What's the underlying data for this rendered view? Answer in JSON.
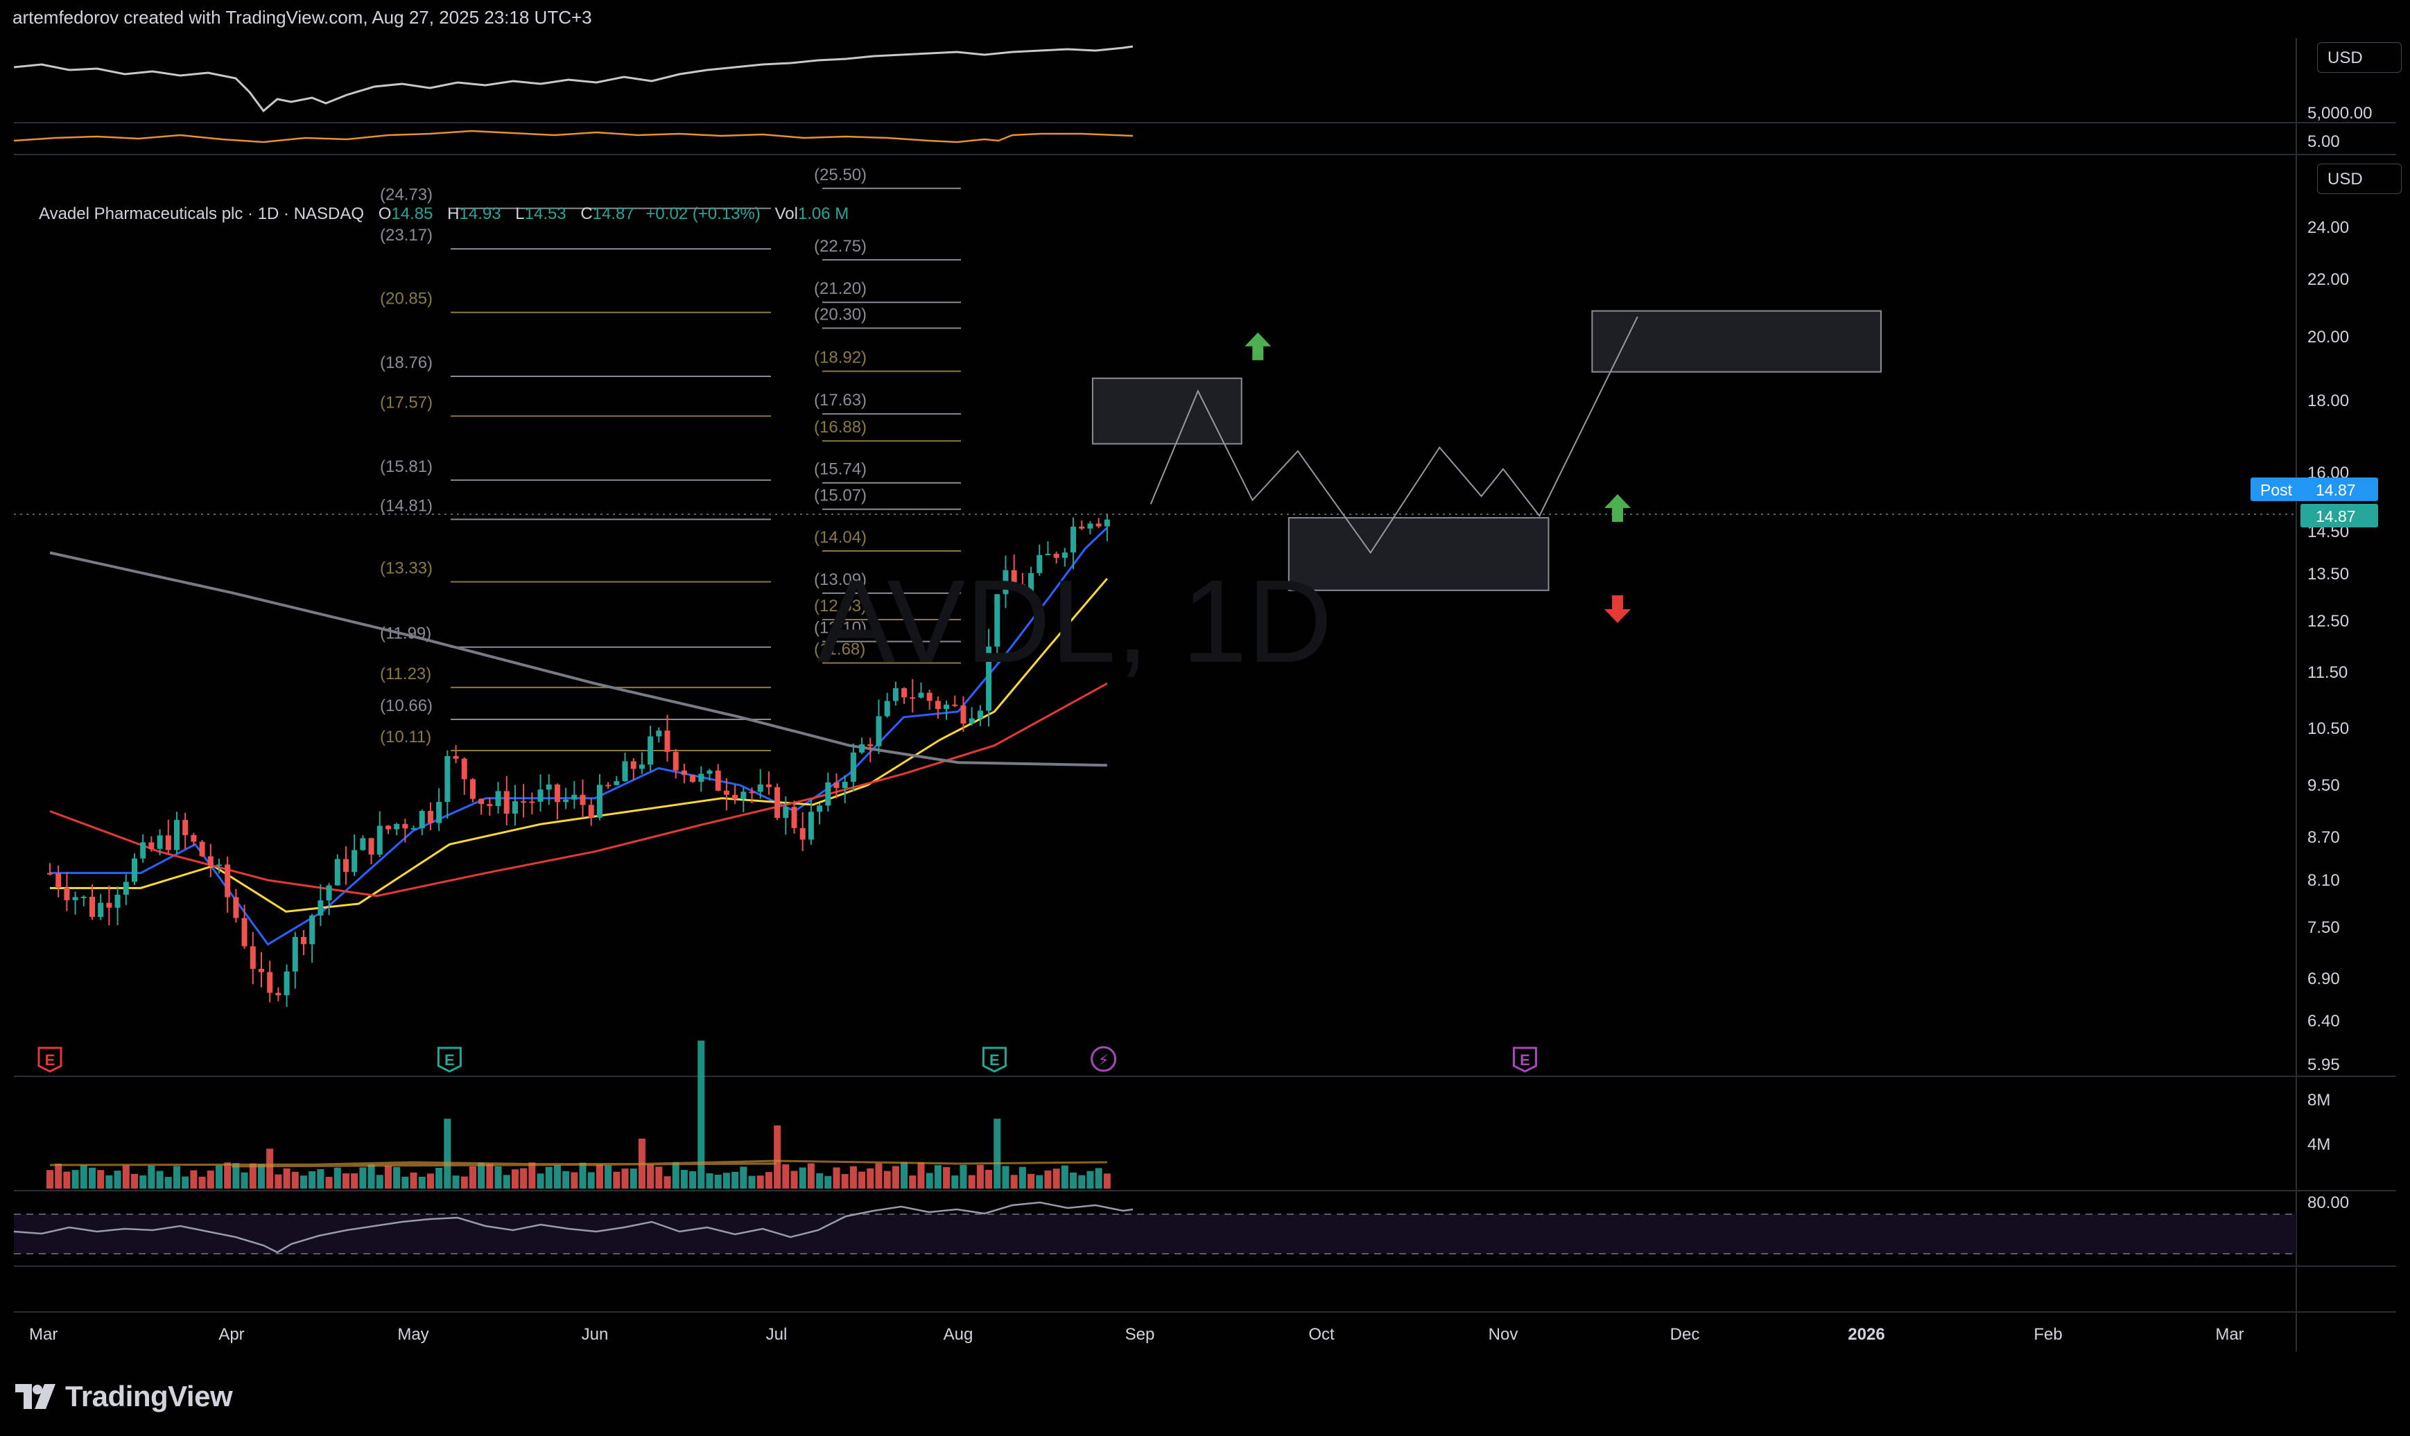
{
  "header": {
    "caption": "artemfedorov created with TradingView.com, Aug 27, 2025 23:18 UTC+3"
  },
  "legend": {
    "title": "Avadel Pharmaceuticals plc · 1D · NASDAQ",
    "o_label": "O",
    "o_value": "14.85",
    "h_label": "H",
    "h_value": "14.93",
    "l_label": "L",
    "l_value": "14.53",
    "c_label": "C",
    "c_value": "14.87",
    "change": "+0.02 (+0.13%)",
    "vol_label": "Vol",
    "vol_value": "1.06 M"
  },
  "watermark": "AVDL, 1D",
  "price_scale": {
    "currency": "USD",
    "top_pane_ticks": [
      "5,000.00",
      "5.00"
    ],
    "ticks": [
      {
        "label": "24.00",
        "v": 24.0
      },
      {
        "label": "22.00",
        "v": 22.0
      },
      {
        "label": "20.00",
        "v": 20.0
      },
      {
        "label": "18.00",
        "v": 18.0
      },
      {
        "label": "16.00",
        "v": 16.0
      },
      {
        "label": "14.50",
        "v": 14.5
      },
      {
        "label": "13.50",
        "v": 13.5
      },
      {
        "label": "12.50",
        "v": 12.5
      },
      {
        "label": "11.50",
        "v": 11.5
      },
      {
        "label": "10.50",
        "v": 10.5
      },
      {
        "label": "9.50",
        "v": 9.5
      },
      {
        "label": "8.70",
        "v": 8.7
      },
      {
        "label": "8.10",
        "v": 8.1
      },
      {
        "label": "7.50",
        "v": 7.5
      },
      {
        "label": "6.90",
        "v": 6.9
      },
      {
        "label": "6.40",
        "v": 6.4
      },
      {
        "label": "5.95",
        "v": 5.95
      }
    ],
    "post_label": "Post",
    "post_price": "14.87",
    "last_price": "14.87",
    "volume_ticks": [
      "8M",
      "4M"
    ],
    "rsi_tick": "80.00"
  },
  "time_axis": {
    "labels": [
      "Mar",
      "Apr",
      "May",
      "Jun",
      "Jul",
      "Aug",
      "Sep",
      "Oct",
      "Nov",
      "Dec",
      "2026",
      "Feb",
      "Mar"
    ]
  },
  "chart_data": {
    "type": "candlestick",
    "symbol": "AVDL",
    "interval": "1D",
    "ohlc_last": {
      "open": 14.85,
      "high": 14.93,
      "low": 14.53,
      "close": 14.87
    },
    "price_path": [
      {
        "m": 0.0,
        "p": 8.2
      },
      {
        "m": 0.25,
        "p": 7.7
      },
      {
        "m": 0.45,
        "p": 8.3
      },
      {
        "m": 0.7,
        "p": 8.8
      },
      {
        "m": 0.9,
        "p": 8.3
      },
      {
        "m": 1.05,
        "p": 7.5
      },
      {
        "m": 1.2,
        "p": 6.6
      },
      {
        "m": 1.35,
        "p": 7.3
      },
      {
        "m": 1.6,
        "p": 8.3
      },
      {
        "m": 1.9,
        "p": 8.9
      },
      {
        "m": 2.1,
        "p": 9.1
      },
      {
        "m": 2.2,
        "p": 10.0
      },
      {
        "m": 2.4,
        "p": 9.2
      },
      {
        "m": 2.7,
        "p": 9.3
      },
      {
        "m": 3.0,
        "p": 9.2
      },
      {
        "m": 3.2,
        "p": 9.8
      },
      {
        "m": 3.35,
        "p": 10.3
      },
      {
        "m": 3.55,
        "p": 9.6
      },
      {
        "m": 3.8,
        "p": 9.5
      },
      {
        "m": 4.0,
        "p": 9.2
      },
      {
        "m": 4.15,
        "p": 8.8
      },
      {
        "m": 4.3,
        "p": 9.4
      },
      {
        "m": 4.5,
        "p": 10.3
      },
      {
        "m": 4.7,
        "p": 11.2
      },
      {
        "m": 4.85,
        "p": 11.0
      },
      {
        "m": 5.0,
        "p": 10.8
      },
      {
        "m": 5.15,
        "p": 11.1
      },
      {
        "m": 5.2,
        "p": 13.3
      },
      {
        "m": 5.35,
        "p": 13.2
      },
      {
        "m": 5.55,
        "p": 14.1
      },
      {
        "m": 5.7,
        "p": 15.0
      },
      {
        "m": 5.82,
        "p": 14.87
      }
    ],
    "moving_averages": [
      {
        "name": "MA fast",
        "color": "#2962ff",
        "points": [
          {
            "m": 0.0,
            "p": 8.2
          },
          {
            "m": 0.5,
            "p": 8.2
          },
          {
            "m": 0.8,
            "p": 8.6
          },
          {
            "m": 1.2,
            "p": 7.3
          },
          {
            "m": 1.5,
            "p": 7.7
          },
          {
            "m": 2.0,
            "p": 8.8
          },
          {
            "m": 2.4,
            "p": 9.3
          },
          {
            "m": 3.0,
            "p": 9.3
          },
          {
            "m": 3.35,
            "p": 9.8
          },
          {
            "m": 3.8,
            "p": 9.5
          },
          {
            "m": 4.1,
            "p": 9.1
          },
          {
            "m": 4.4,
            "p": 9.7
          },
          {
            "m": 4.7,
            "p": 10.7
          },
          {
            "m": 5.0,
            "p": 10.8
          },
          {
            "m": 5.25,
            "p": 11.8
          },
          {
            "m": 5.5,
            "p": 13.0
          },
          {
            "m": 5.7,
            "p": 14.1
          },
          {
            "m": 5.82,
            "p": 14.6
          }
        ]
      },
      {
        "name": "MA mid",
        "color": "#fdd835",
        "points": [
          {
            "m": 0.0,
            "p": 8.0
          },
          {
            "m": 0.5,
            "p": 8.0
          },
          {
            "m": 0.9,
            "p": 8.3
          },
          {
            "m": 1.3,
            "p": 7.7
          },
          {
            "m": 1.7,
            "p": 7.8
          },
          {
            "m": 2.2,
            "p": 8.6
          },
          {
            "m": 2.7,
            "p": 8.9
          },
          {
            "m": 3.2,
            "p": 9.1
          },
          {
            "m": 3.7,
            "p": 9.3
          },
          {
            "m": 4.2,
            "p": 9.2
          },
          {
            "m": 4.5,
            "p": 9.5
          },
          {
            "m": 4.9,
            "p": 10.3
          },
          {
            "m": 5.2,
            "p": 10.8
          },
          {
            "m": 5.5,
            "p": 12.0
          },
          {
            "m": 5.82,
            "p": 13.4
          }
        ]
      },
      {
        "name": "MA slow",
        "color": "#e53935",
        "points": [
          {
            "m": 0.0,
            "p": 9.1
          },
          {
            "m": 0.6,
            "p": 8.5
          },
          {
            "m": 1.2,
            "p": 8.1
          },
          {
            "m": 1.8,
            "p": 7.9
          },
          {
            "m": 2.4,
            "p": 8.2
          },
          {
            "m": 3.0,
            "p": 8.5
          },
          {
            "m": 3.6,
            "p": 8.9
          },
          {
            "m": 4.2,
            "p": 9.3
          },
          {
            "m": 4.7,
            "p": 9.7
          },
          {
            "m": 5.2,
            "p": 10.2
          },
          {
            "m": 5.82,
            "p": 11.3
          }
        ]
      },
      {
        "name": "MA long",
        "color": "#787b86",
        "points": [
          {
            "m": 0.0,
            "p": 14.0
          },
          {
            "m": 1.0,
            "p": 13.1
          },
          {
            "m": 2.0,
            "p": 12.2
          },
          {
            "m": 3.0,
            "p": 11.3
          },
          {
            "m": 3.8,
            "p": 10.7
          },
          {
            "m": 4.4,
            "p": 10.2
          },
          {
            "m": 5.0,
            "p": 9.9
          },
          {
            "m": 5.82,
            "p": 9.85
          }
        ]
      }
    ],
    "fib_levels_left": [
      {
        "label": "(24.73)",
        "v": 24.73,
        "color": "#8a8d96"
      },
      {
        "label": "(23.17)",
        "v": 23.17,
        "color": "#8a8d96"
      },
      {
        "label": "(20.85)",
        "v": 20.85,
        "color": "#8a7a42"
      },
      {
        "label": "(18.76)",
        "v": 18.76,
        "color": "#8a8d96"
      },
      {
        "label": "(17.57)",
        "v": 17.57,
        "color": "#8a7a42"
      },
      {
        "label": "(15.81)",
        "v": 15.81,
        "color": "#8a8d96"
      },
      {
        "label": "(14.81)",
        "v": 14.81,
        "color": "#8a8d96"
      },
      {
        "label": "(13.33)",
        "v": 13.33,
        "color": "#8a7a42"
      },
      {
        "label": "(11.99)",
        "v": 11.99,
        "color": "#8a8d96"
      },
      {
        "label": "(11.23)",
        "v": 11.23,
        "color": "#8a7a42"
      },
      {
        "label": "(10.66)",
        "v": 10.66,
        "color": "#8a8d96"
      },
      {
        "label": "(10.11)",
        "v": 10.11,
        "color": "#8a7a42"
      }
    ],
    "fib_levels_right": [
      {
        "label": "(25.50)",
        "v": 25.5,
        "color": "#8a8d96"
      },
      {
        "label": "(22.75)",
        "v": 22.75,
        "color": "#8a8d96"
      },
      {
        "label": "(21.20)",
        "v": 21.2,
        "color": "#8a8d96"
      },
      {
        "label": "(20.30)",
        "v": 20.3,
        "color": "#8a8d96"
      },
      {
        "label": "(18.92)",
        "v": 18.92,
        "color": "#8a7a42"
      },
      {
        "label": "(17.63)",
        "v": 17.63,
        "color": "#8a8d96"
      },
      {
        "label": "(16.88)",
        "v": 16.88,
        "color": "#8a7a42"
      },
      {
        "label": "(15.74)",
        "v": 15.74,
        "color": "#8a8d96"
      },
      {
        "label": "(15.07)",
        "v": 15.07,
        "color": "#8a8d96"
      },
      {
        "label": "(14.04)",
        "v": 14.04,
        "color": "#8a7a42"
      },
      {
        "label": "(13.09)",
        "v": 13.09,
        "color": "#8a8d96"
      },
      {
        "label": "(12.53)",
        "v": 12.53,
        "color": "#8a7a42"
      },
      {
        "label": "(12.10)",
        "v": 12.1,
        "color": "#8a8d96"
      },
      {
        "label": "(11.68)",
        "v": 11.68,
        "color": "#8a7a42"
      }
    ],
    "zones": [
      {
        "name": "target-zone-1",
        "m0": 5.74,
        "m1": 6.56,
        "p_top": 18.7,
        "p_bottom": 16.8
      },
      {
        "name": "pullback-zone",
        "m0": 6.82,
        "m1": 8.25,
        "p_top": 14.85,
        "p_bottom": 13.15
      },
      {
        "name": "target-zone-2",
        "m0": 8.49,
        "m1": 10.08,
        "p_top": 20.9,
        "p_bottom": 18.9
      }
    ],
    "projection_path": [
      {
        "m": 6.06,
        "p": 15.2
      },
      {
        "m": 6.32,
        "p": 18.3
      },
      {
        "m": 6.62,
        "p": 15.3
      },
      {
        "m": 6.87,
        "p": 16.6
      },
      {
        "m": 7.27,
        "p": 14.0
      },
      {
        "m": 7.65,
        "p": 16.7
      },
      {
        "m": 7.88,
        "p": 15.4
      },
      {
        "m": 8.0,
        "p": 16.1
      },
      {
        "m": 8.2,
        "p": 14.9
      },
      {
        "m": 8.74,
        "p": 20.7
      }
    ],
    "arrows": [
      {
        "name": "up-arrow-1",
        "m": 6.65,
        "p": 19.7,
        "dir": "up",
        "color": "#4caf50"
      },
      {
        "name": "up-arrow-2",
        "m": 8.63,
        "p": 15.1,
        "dir": "up",
        "color": "#4caf50"
      },
      {
        "name": "down-arrow",
        "m": 8.63,
        "p": 12.75,
        "dir": "down",
        "color": "#e53935"
      }
    ],
    "events": [
      {
        "name": "earnings-mar",
        "m": 0.0,
        "glyph": "E",
        "color": "#e53935"
      },
      {
        "name": "earnings-may",
        "m": 2.2,
        "glyph": "E",
        "color": "#26a69a"
      },
      {
        "name": "earnings-aug",
        "m": 5.2,
        "glyph": "E",
        "color": "#26a69a"
      },
      {
        "name": "dividend-event",
        "m": 5.8,
        "glyph": "⚡",
        "color": "#ab47bc"
      },
      {
        "name": "earnings-upcoming",
        "m": 8.12,
        "glyph": "E",
        "color": "#ab47bc"
      }
    ],
    "volume_spikes_millions": [
      {
        "m": 1.2,
        "v": 2.4
      },
      {
        "m": 2.2,
        "v": 4.2
      },
      {
        "m": 3.25,
        "v": 3.0
      },
      {
        "m": 3.6,
        "v": 8.9
      },
      {
        "m": 4.0,
        "v": 3.8
      },
      {
        "m": 5.2,
        "v": 4.2
      }
    ]
  }
}
